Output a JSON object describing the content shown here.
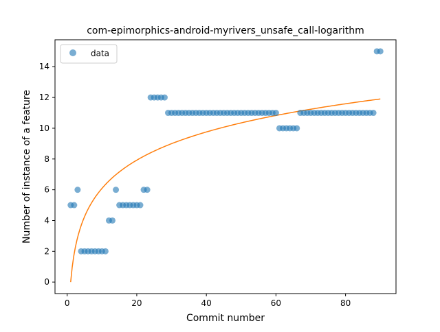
{
  "chart_data": {
    "type": "scatter",
    "title": "com-epimorphics-android-myrivers_unsafe_call-logarithm",
    "xlabel": "Commit number",
    "ylabel": "Number of instance of a feature",
    "xlim": [
      -3.5,
      94.5
    ],
    "ylim": [
      -0.75,
      15.75
    ],
    "xticks": [
      0,
      20,
      40,
      60,
      80
    ],
    "yticks": [
      0,
      2,
      4,
      6,
      8,
      10,
      12,
      14
    ],
    "grid": false,
    "legend_position": "upper-left",
    "series": [
      {
        "name": "data",
        "kind": "scatter",
        "color": "#1f77b4",
        "x": [
          1,
          2,
          3,
          4,
          5,
          6,
          7,
          8,
          9,
          10,
          11,
          12,
          13,
          14,
          15,
          16,
          17,
          18,
          19,
          20,
          21,
          22,
          23,
          24,
          25,
          26,
          27,
          28,
          29,
          30,
          31,
          32,
          33,
          34,
          35,
          36,
          37,
          38,
          39,
          40,
          41,
          42,
          43,
          44,
          45,
          46,
          47,
          48,
          49,
          50,
          51,
          52,
          53,
          54,
          55,
          56,
          57,
          58,
          59,
          60,
          61,
          62,
          63,
          64,
          65,
          66,
          67,
          68,
          69,
          70,
          71,
          72,
          73,
          74,
          75,
          76,
          77,
          78,
          79,
          80,
          81,
          82,
          83,
          84,
          85,
          86,
          87,
          88,
          89,
          90
        ],
        "y": [
          5,
          5,
          6,
          2,
          2,
          2,
          2,
          2,
          2,
          2,
          2,
          4,
          4,
          6,
          5,
          5,
          5,
          5,
          5,
          5,
          5,
          6,
          6,
          12,
          12,
          12,
          12,
          12,
          11,
          11,
          11,
          11,
          11,
          11,
          11,
          11,
          11,
          11,
          11,
          11,
          11,
          11,
          11,
          11,
          11,
          11,
          11,
          11,
          11,
          11,
          11,
          11,
          11,
          11,
          11,
          11,
          11,
          11,
          11,
          11,
          10,
          10,
          10,
          10,
          10,
          10,
          11,
          11,
          11,
          11,
          11,
          11,
          11,
          11,
          11,
          11,
          11,
          11,
          11,
          11,
          11,
          11,
          11,
          11,
          11,
          11,
          11,
          11,
          15,
          15
        ]
      },
      {
        "kind": "line",
        "color": "#ff7f0e",
        "fit": "logarithmic",
        "fit_intercept": 0,
        "fit_slope": 2.645,
        "x_start": 1,
        "x_end": 90
      }
    ]
  }
}
